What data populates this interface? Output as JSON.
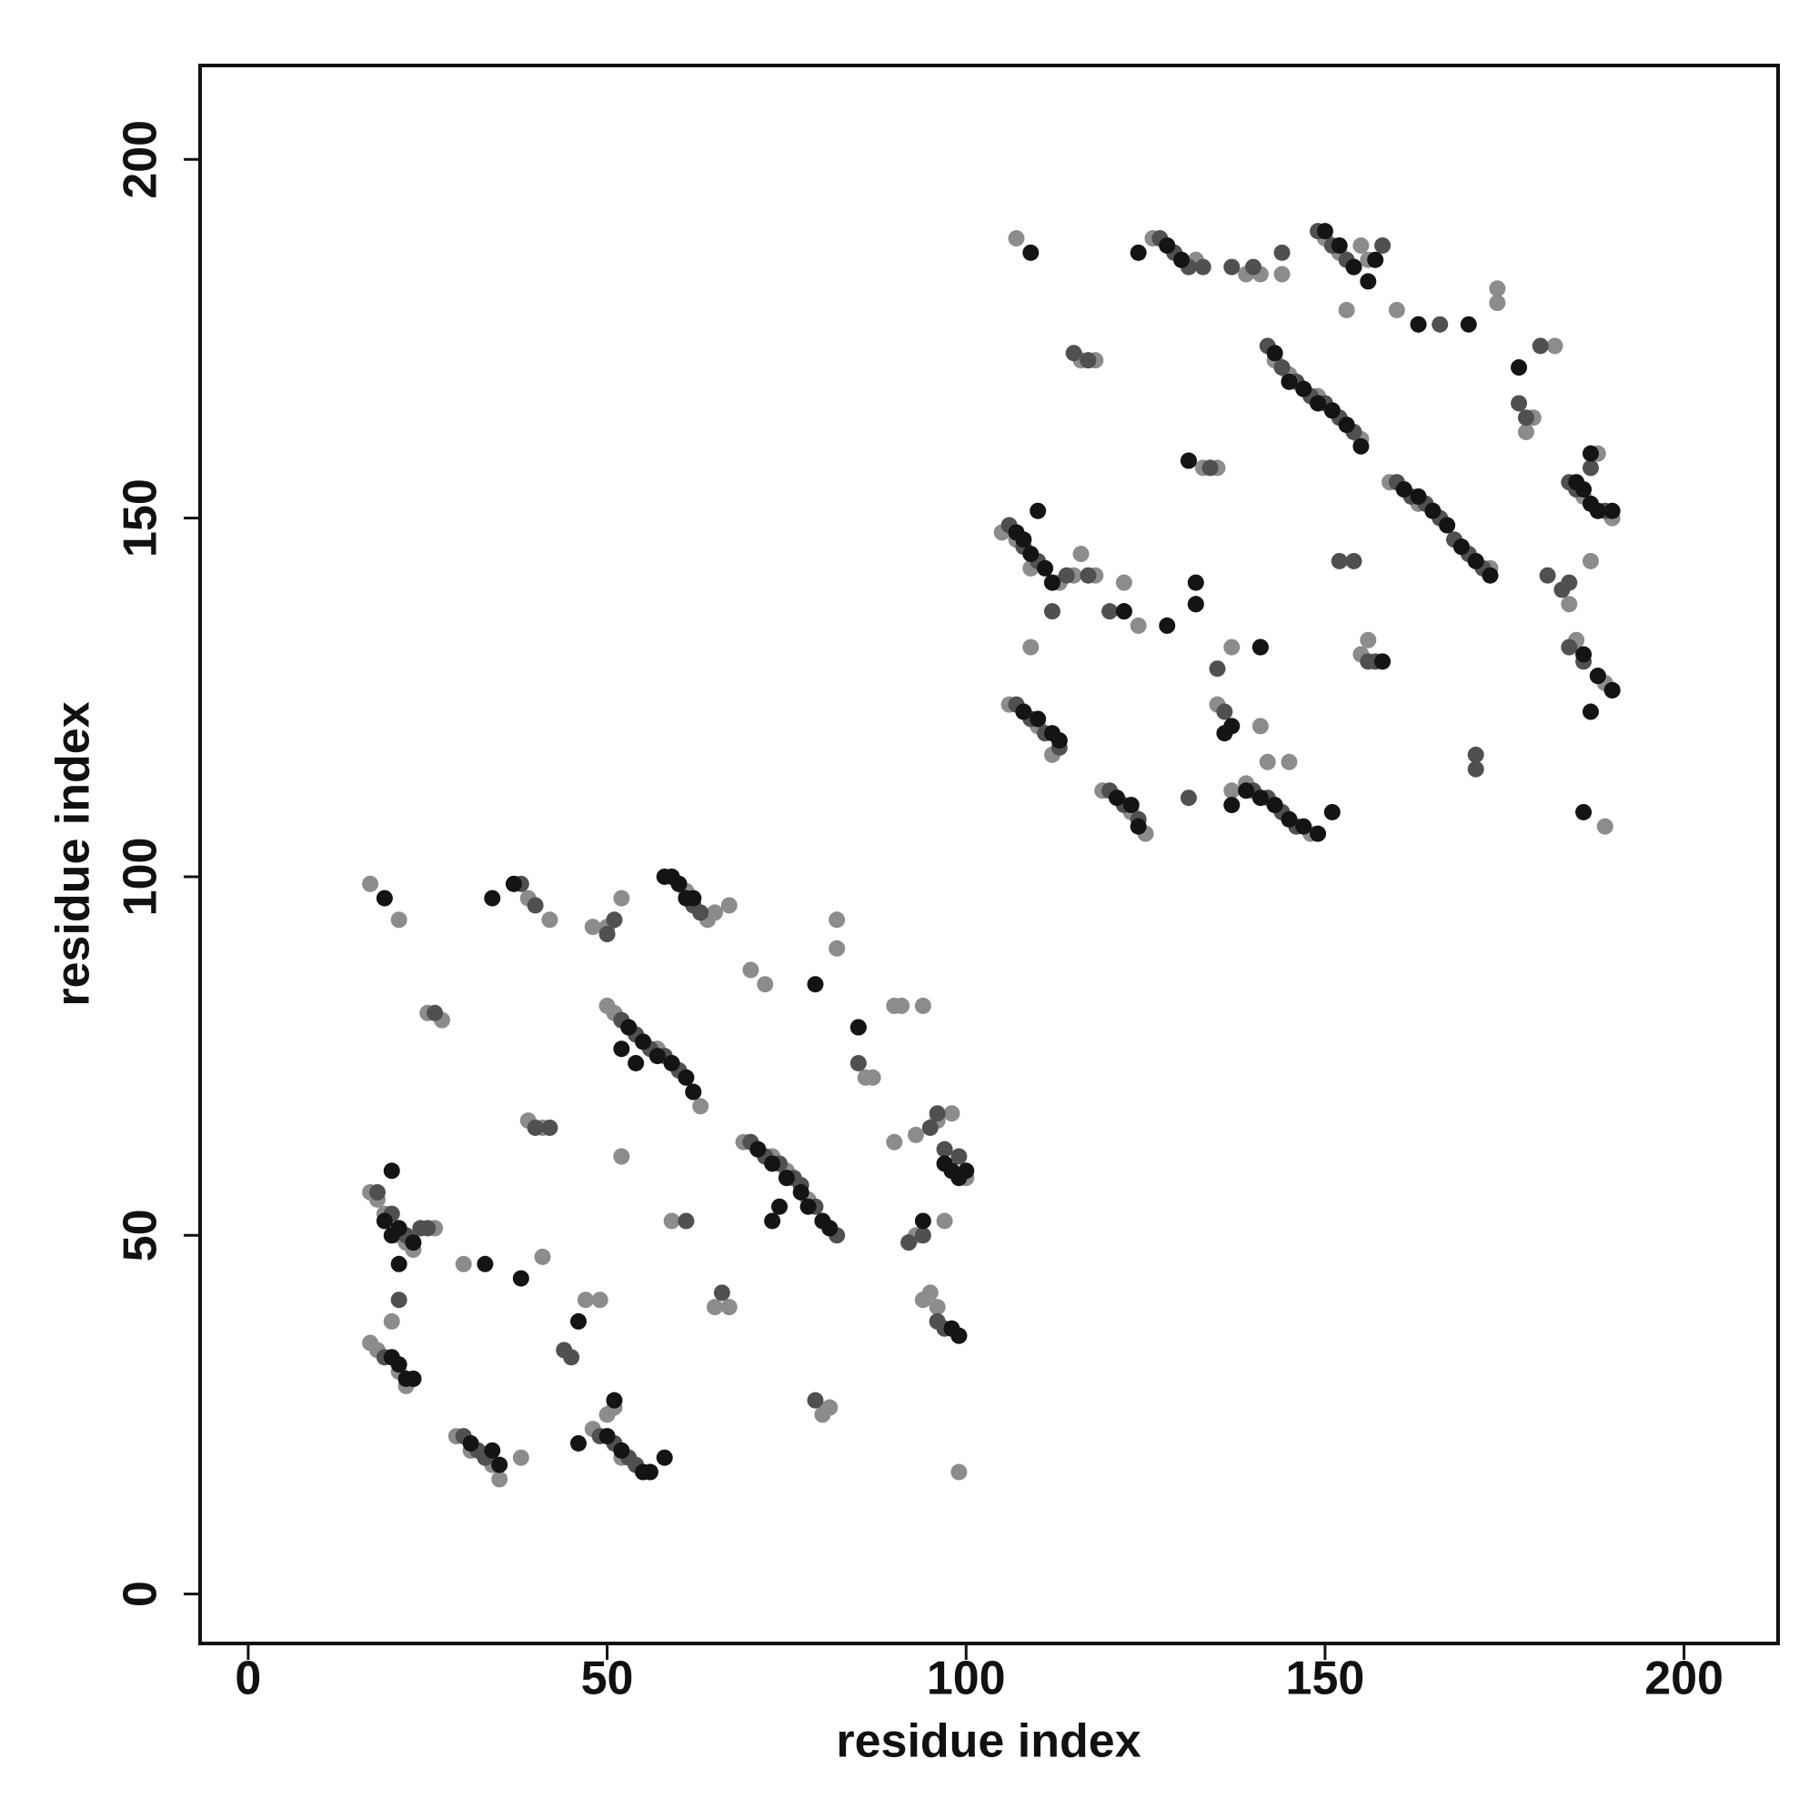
{
  "chart_data": {
    "type": "scatter",
    "xlabel": "residue index",
    "ylabel": "residue index",
    "xlim": [
      -6.7,
      213.1
    ],
    "ylim": [
      -6.9,
      213.1
    ],
    "xticks": [
      0,
      50,
      100,
      150,
      200
    ],
    "yticks": [
      0,
      50,
      100,
      150,
      200
    ],
    "series": [
      {
        "color": "#8c8c8c",
        "x": [
          17,
          18,
          19,
          21,
          22,
          23,
          26,
          17,
          18,
          21,
          22,
          29,
          31,
          34,
          35,
          48,
          50,
          51,
          52,
          50,
          51,
          53,
          55,
          57,
          59,
          61,
          63,
          69,
          71,
          73,
          75,
          78,
          81,
          61,
          64,
          65,
          67,
          37,
          39,
          42,
          96,
          98,
          100,
          94,
          95,
          96,
          17,
          21,
          25,
          27,
          39,
          41,
          48,
          50,
          52,
          52,
          59,
          65,
          67,
          70,
          72,
          82,
          82,
          86,
          87,
          90,
          91,
          94,
          90,
          93,
          80,
          81,
          99,
          20,
          38,
          30,
          41,
          47,
          49,
          93,
          97,
          105,
          107,
          109,
          113,
          115,
          106,
          108,
          110,
          112,
          119,
          121,
          123,
          125,
          139,
          143,
          145,
          148,
          142,
          145,
          143,
          145,
          147,
          149,
          151,
          153,
          155,
          150,
          152,
          154,
          156,
          155,
          126,
          128,
          130,
          132,
          159,
          161,
          163,
          165,
          167,
          169,
          171,
          173,
          186,
          188,
          190,
          188,
          190,
          185,
          189,
          107,
          139,
          141,
          144,
          116,
          118,
          133,
          135,
          153,
          160,
          174,
          174,
          178,
          179,
          182,
          184,
          187,
          116,
          118,
          109,
          122,
          124,
          137,
          141,
          135,
          137,
          156,
          155,
          189
        ],
        "y": [
          56,
          55,
          53,
          50,
          49,
          48,
          51,
          35,
          34,
          31,
          29,
          22,
          20,
          18,
          16,
          23,
          25,
          26,
          19,
          82,
          81,
          79,
          77,
          76,
          74,
          72,
          68,
          63,
          62,
          61,
          59,
          55,
          51,
          98,
          94,
          95,
          96,
          99,
          97,
          94,
          66,
          67,
          58,
          41,
          42,
          40,
          99,
          94,
          81,
          80,
          66,
          65,
          93,
          93,
          97,
          61,
          52,
          40,
          40,
          87,
          85,
          94,
          90,
          72,
          72,
          82,
          82,
          82,
          63,
          64,
          25,
          26,
          17,
          38,
          19,
          46,
          47,
          41,
          41,
          50,
          52,
          148,
          147,
          143,
          141,
          142,
          124,
          123,
          121,
          117,
          112,
          111,
          109,
          106,
          113,
          110,
          108,
          106,
          116,
          116,
          172,
          170,
          168,
          167,
          165,
          163,
          161,
          189,
          187,
          185,
          186,
          188,
          189,
          188,
          186,
          186,
          155,
          154,
          152,
          151,
          149,
          146,
          144,
          143,
          153,
          151,
          150,
          159,
          126,
          133,
          127,
          189,
          184,
          184,
          184,
          172,
          172,
          157,
          157,
          179,
          179,
          182,
          180,
          162,
          164,
          174,
          138,
          144,
          145,
          142,
          132,
          141,
          135,
          132,
          121,
          124,
          112,
          133,
          131,
          107
        ]
      },
      {
        "color": "#505050",
        "x": [
          18,
          20,
          22,
          24,
          25,
          19,
          20,
          23,
          30,
          32,
          33,
          49,
          51,
          53,
          54,
          52,
          54,
          56,
          58,
          60,
          62,
          70,
          72,
          74,
          76,
          77,
          79,
          82,
          60,
          62,
          63,
          38,
          40,
          95,
          96,
          97,
          99,
          96,
          97,
          99,
          26,
          40,
          42,
          51,
          50,
          61,
          66,
          79,
          85,
          85,
          92,
          94,
          44,
          45,
          21,
          106,
          108,
          110,
          112,
          114,
          107,
          109,
          111,
          113,
          120,
          122,
          124,
          140,
          142,
          144,
          146,
          142,
          144,
          146,
          148,
          150,
          152,
          154,
          149,
          151,
          153,
          158,
          127,
          129,
          131,
          133,
          160,
          162,
          164,
          166,
          168,
          170,
          172,
          184,
          185,
          187,
          189,
          184,
          186,
          188,
          190,
          137,
          140,
          144,
          115,
          117,
          131,
          134,
          152,
          154,
          163,
          166,
          177,
          178,
          180,
          181,
          183,
          184,
          117,
          112,
          120,
          122,
          131,
          132,
          135,
          136,
          156,
          157,
          171,
          171
        ],
        "y": [
          56,
          53,
          50,
          51,
          51,
          33,
          33,
          30,
          22,
          20,
          19,
          22,
          21,
          19,
          18,
          80,
          78,
          76,
          75,
          73,
          70,
          63,
          61,
          60,
          58,
          57,
          54,
          50,
          99,
          96,
          95,
          99,
          96,
          65,
          67,
          62,
          61,
          38,
          37,
          36,
          81,
          65,
          65,
          94,
          92,
          52,
          42,
          27,
          79,
          74,
          49,
          50,
          34,
          33,
          41,
          149,
          146,
          144,
          141,
          142,
          124,
          122,
          120,
          118,
          112,
          110,
          108,
          112,
          111,
          109,
          107,
          174,
          171,
          169,
          167,
          166,
          164,
          162,
          190,
          188,
          186,
          188,
          189,
          187,
          185,
          185,
          155,
          153,
          152,
          150,
          147,
          145,
          143,
          155,
          154,
          157,
          151,
          132,
          130,
          128,
          126,
          185,
          185,
          187,
          173,
          172,
          158,
          157,
          144,
          144,
          177,
          177,
          166,
          164,
          174,
          142,
          140,
          141,
          142,
          137,
          137,
          137,
          111,
          138,
          129,
          123,
          130,
          130,
          117,
          115
        ]
      },
      {
        "color": "#141414",
        "x": [
          19,
          20,
          21,
          23,
          20,
          21,
          22,
          23,
          31,
          34,
          35,
          50,
          52,
          55,
          56,
          58,
          51,
          53,
          55,
          57,
          59,
          61,
          62,
          52,
          54,
          71,
          73,
          75,
          77,
          78,
          80,
          81,
          74,
          73,
          58,
          59,
          60,
          61,
          62,
          19,
          34,
          37,
          97,
          98,
          99,
          100,
          98,
          99,
          21,
          33,
          38,
          46,
          46,
          79,
          85,
          94,
          20,
          107,
          108,
          109,
          111,
          112,
          110,
          108,
          110,
          112,
          113,
          121,
          123,
          124,
          139,
          141,
          143,
          145,
          147,
          149,
          151,
          143,
          145,
          147,
          149,
          151,
          153,
          155,
          150,
          152,
          154,
          156,
          157,
          128,
          130,
          161,
          163,
          165,
          167,
          169,
          171,
          173,
          185,
          186,
          187,
          188,
          190,
          187,
          186,
          188,
          190,
          187,
          109,
          124,
          170,
          177,
          131,
          132,
          132,
          137,
          141,
          137,
          141,
          136,
          128,
          158,
          163,
          186,
          122
        ],
        "y": [
          52,
          50,
          51,
          49,
          33,
          32,
          30,
          30,
          21,
          20,
          18,
          22,
          20,
          17,
          17,
          19,
          27,
          79,
          77,
          75,
          74,
          72,
          70,
          76,
          74,
          62,
          60,
          58,
          56,
          54,
          52,
          51,
          54,
          52,
          100,
          100,
          99,
          97,
          97,
          97,
          97,
          99,
          60,
          59,
          58,
          59,
          37,
          36,
          46,
          46,
          44,
          38,
          21,
          85,
          79,
          52,
          59,
          148,
          147,
          145,
          143,
          141,
          151,
          123,
          122,
          120,
          119,
          111,
          110,
          107,
          112,
          111,
          110,
          108,
          107,
          106,
          109,
          173,
          169,
          168,
          166,
          165,
          163,
          160,
          190,
          188,
          185,
          183,
          186,
          188,
          186,
          154,
          153,
          151,
          149,
          146,
          144,
          142,
          155,
          154,
          152,
          151,
          151,
          159,
          131,
          128,
          126,
          123,
          187,
          187,
          177,
          171,
          158,
          141,
          138,
          121,
          132,
          110,
          132,
          120,
          135,
          130,
          177,
          109,
          137
        ]
      }
    ]
  }
}
